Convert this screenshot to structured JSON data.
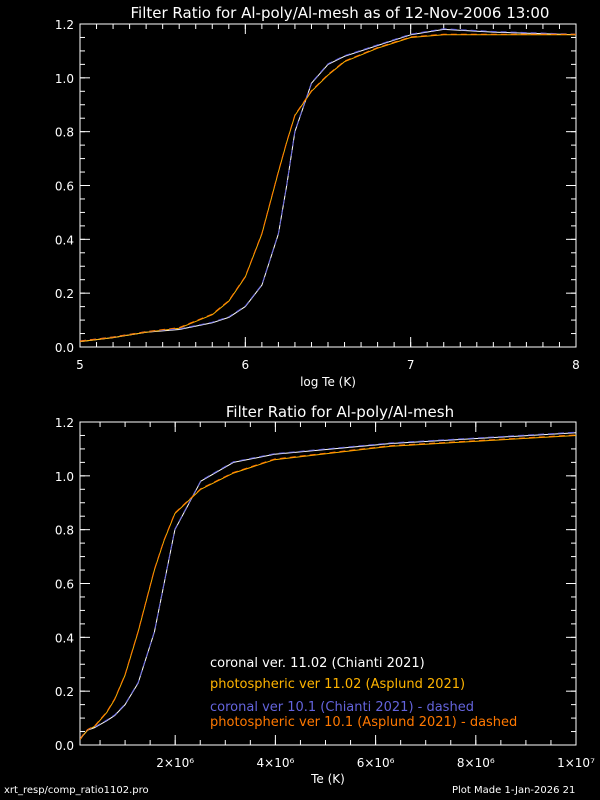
{
  "chart_data": [
    {
      "type": "line",
      "title": "Filter Ratio for Al-poly/Al-mesh as of 12-Nov-2006 13:00",
      "xlabel": "log Te (K)",
      "ylabel": "",
      "xlim": [
        5,
        8
      ],
      "ylim": [
        0,
        1.2
      ],
      "xticks": [
        5,
        6,
        7,
        8
      ],
      "xtick_labels": [
        "5",
        "6",
        "7",
        "8"
      ],
      "yticks": [
        0,
        0.2,
        0.4,
        0.6,
        0.8,
        1.0,
        1.2
      ],
      "ytick_labels": [
        "0.0",
        "0.2",
        "0.4",
        "0.6",
        "0.8",
        "1.0",
        "1.2"
      ],
      "x": [
        5.0,
        5.2,
        5.4,
        5.6,
        5.8,
        5.9,
        6.0,
        6.1,
        6.2,
        6.25,
        6.3,
        6.4,
        6.5,
        6.6,
        6.8,
        7.0,
        7.2,
        7.5,
        8.0
      ],
      "series": [
        {
          "name": "coronal ver. 11.02 (Chianti 2021)",
          "color": "#ffffff",
          "dashed": false,
          "values": [
            0.02,
            0.035,
            0.055,
            0.065,
            0.09,
            0.11,
            0.15,
            0.23,
            0.42,
            0.6,
            0.8,
            0.98,
            1.05,
            1.08,
            1.12,
            1.16,
            1.18,
            1.17,
            1.16
          ]
        },
        {
          "name": "photospheric ver 11.02 (Asplund 2021)",
          "color": "#ffb400",
          "dashed": false,
          "values": [
            0.02,
            0.035,
            0.055,
            0.07,
            0.12,
            0.17,
            0.26,
            0.42,
            0.65,
            0.76,
            0.86,
            0.95,
            1.01,
            1.06,
            1.11,
            1.15,
            1.16,
            1.16,
            1.16
          ]
        },
        {
          "name": "coronal ver 10.1 (Chianti 2021) - dashed",
          "color": "#6464dc",
          "dashed": true,
          "values": [
            0.02,
            0.035,
            0.055,
            0.065,
            0.09,
            0.11,
            0.15,
            0.23,
            0.42,
            0.6,
            0.8,
            0.98,
            1.05,
            1.08,
            1.12,
            1.16,
            1.18,
            1.17,
            1.16
          ]
        },
        {
          "name": "photospheric ver 10.1 (Asplund 2021) - dashed",
          "color": "#ff7800",
          "dashed": true,
          "values": [
            0.02,
            0.035,
            0.055,
            0.07,
            0.12,
            0.17,
            0.26,
            0.42,
            0.65,
            0.76,
            0.86,
            0.95,
            1.01,
            1.06,
            1.11,
            1.15,
            1.16,
            1.16,
            1.16
          ]
        }
      ]
    },
    {
      "type": "line",
      "title": "Filter Ratio for Al-poly/Al-mesh",
      "xlabel": "Te (K)",
      "ylabel": "",
      "xlim": [
        100000,
        10000000
      ],
      "ylim": [
        0,
        1.2
      ],
      "xticks": [
        2000000,
        4000000,
        6000000,
        8000000,
        10000000
      ],
      "xtick_labels": [
        "2×10⁶",
        "4×10⁶",
        "6×10⁶",
        "8×10⁶",
        "1×10⁷"
      ],
      "yticks": [
        0,
        0.2,
        0.4,
        0.6,
        0.8,
        1.0,
        1.2
      ],
      "ytick_labels": [
        "0.0",
        "0.2",
        "0.4",
        "0.6",
        "0.8",
        "1.0",
        "1.2"
      ],
      "x": [
        100000,
        158500,
        251200,
        398100,
        631000,
        794300,
        1000000,
        1259000,
        1585000,
        1778000,
        1995000,
        2512000,
        3162000,
        3981000,
        6310000,
        10000000
      ],
      "legend": "bottom-right",
      "series": [
        {
          "name": "coronal ver. 11.02 (Chianti 2021)",
          "color": "#ffffff",
          "dashed": false,
          "values": [
            0.02,
            0.035,
            0.055,
            0.065,
            0.09,
            0.11,
            0.15,
            0.23,
            0.42,
            0.6,
            0.8,
            0.98,
            1.05,
            1.08,
            1.12,
            1.16
          ]
        },
        {
          "name": "photospheric ver 11.02 (Asplund 2021)",
          "color": "#ffb400",
          "dashed": false,
          "values": [
            0.02,
            0.035,
            0.055,
            0.07,
            0.12,
            0.17,
            0.26,
            0.42,
            0.65,
            0.76,
            0.86,
            0.95,
            1.01,
            1.06,
            1.11,
            1.15
          ]
        },
        {
          "name": "coronal ver 10.1 (Chianti 2021) - dashed",
          "color": "#6464dc",
          "dashed": true,
          "values": [
            0.02,
            0.035,
            0.055,
            0.065,
            0.09,
            0.11,
            0.15,
            0.23,
            0.42,
            0.6,
            0.8,
            0.98,
            1.05,
            1.08,
            1.12,
            1.16
          ]
        },
        {
          "name": "photospheric ver 10.1 (Asplund 2021) - dashed",
          "color": "#ff7800",
          "dashed": true,
          "values": [
            0.02,
            0.035,
            0.055,
            0.07,
            0.12,
            0.17,
            0.26,
            0.42,
            0.65,
            0.76,
            0.86,
            0.95,
            1.01,
            1.06,
            1.11,
            1.15
          ]
        }
      ]
    }
  ],
  "footer": {
    "program": "xrt_resp/comp_ratio1102.pro",
    "plot_made": "Plot Made  1-Jan-2026 21"
  }
}
